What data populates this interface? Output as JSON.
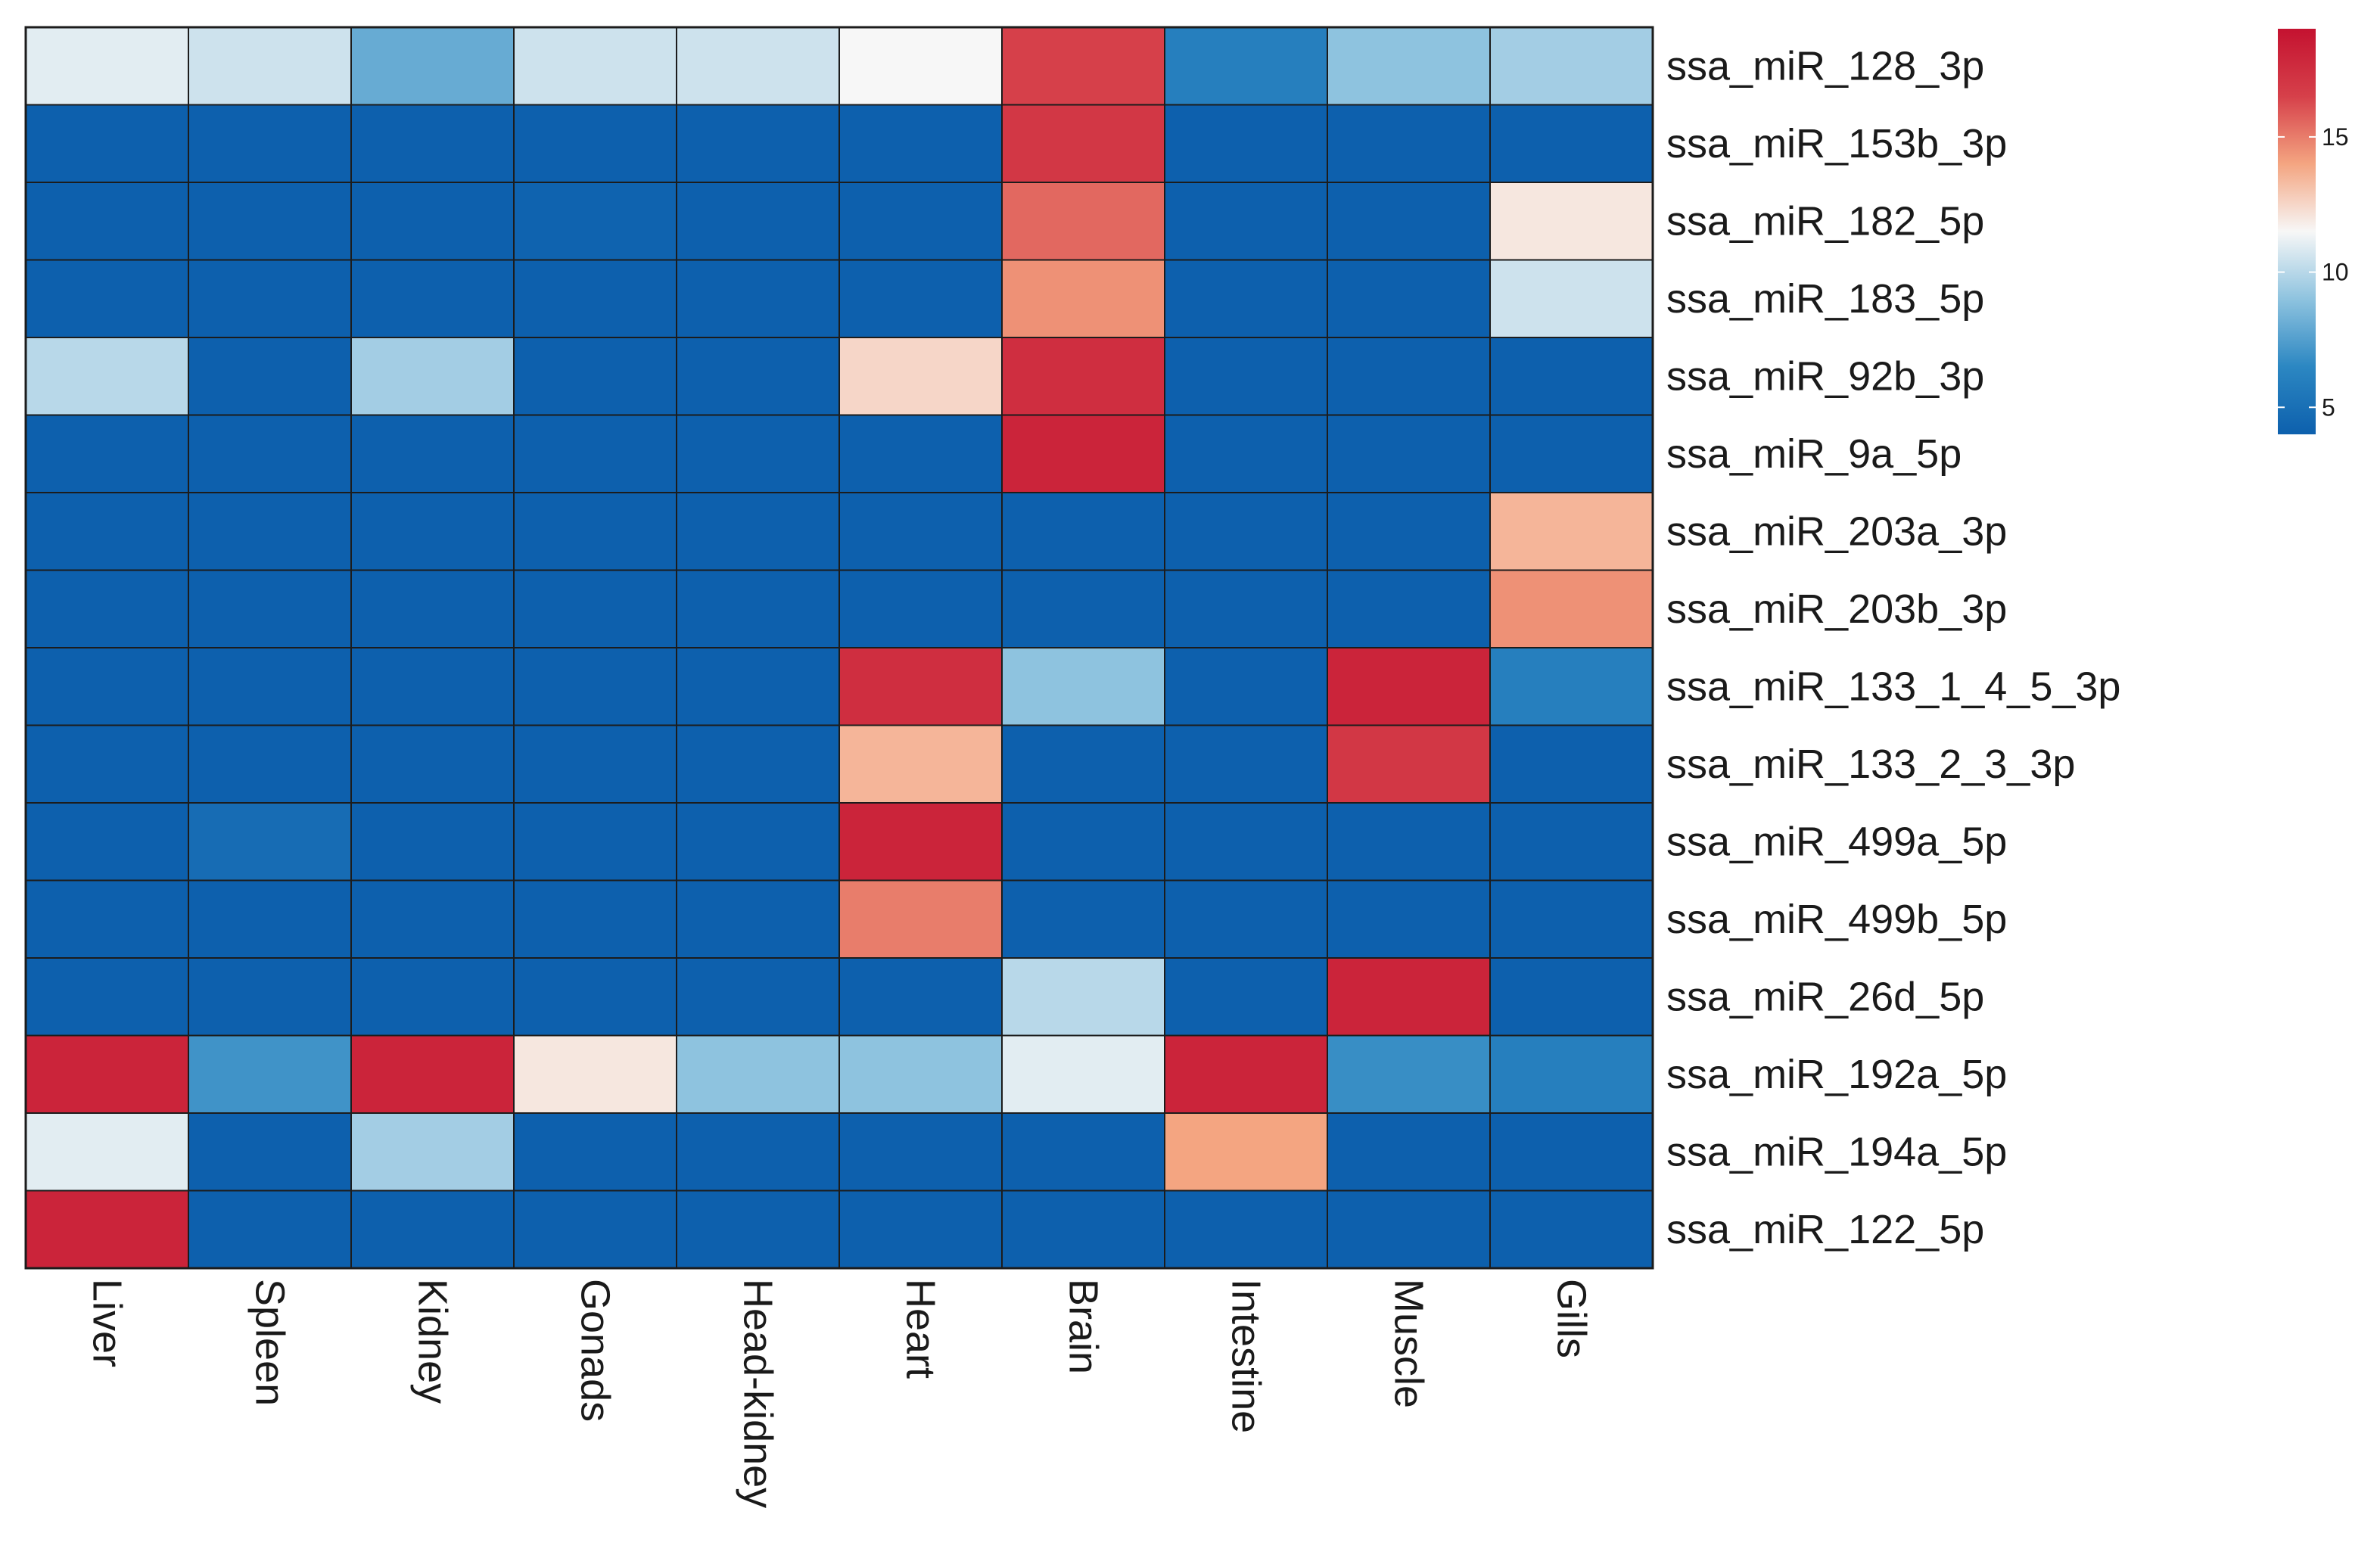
{
  "chart_data": {
    "type": "heatmap",
    "title": "",
    "xlabel": "",
    "ylabel": "",
    "columns": [
      "Liver",
      "Spleen",
      "Kidney",
      "Gonads",
      "Head-kidney",
      "Heart",
      "Brain",
      "Intestine",
      "Muscle",
      "Gills"
    ],
    "rows": [
      "ssa_miR_128_3p",
      "ssa_miR_153b_3p",
      "ssa_miR_182_5p",
      "ssa_miR_183_5p",
      "ssa_miR_92b_3p",
      "ssa_miR_9a_5p",
      "ssa_miR_203a_3p",
      "ssa_miR_203b_3p",
      "ssa_miR_133_1_4_5_3p",
      "ssa_miR_133_2_3_3p",
      "ssa_miR_499a_5p",
      "ssa_miR_499b_5p",
      "ssa_miR_26d_5p",
      "ssa_miR_192a_5p",
      "ssa_miR_194a_5p",
      "ssa_miR_122_5p"
    ],
    "values": [
      [
        11,
        10.5,
        8,
        10.5,
        10.5,
        11.5,
        16.5,
        6,
        9,
        9.5
      ],
      [
        4,
        4,
        4,
        4,
        4,
        4,
        17,
        4,
        4,
        4
      ],
      [
        4,
        4,
        4,
        4.2,
        4,
        4,
        15.5,
        4,
        4,
        12
      ],
      [
        4,
        4,
        4,
        4,
        4,
        4,
        14.5,
        4,
        4,
        10.5
      ],
      [
        10,
        4,
        9.5,
        4,
        4,
        12.5,
        17.5,
        4,
        4,
        4
      ],
      [
        4,
        4,
        4,
        4,
        4,
        4,
        18,
        4,
        4,
        4
      ],
      [
        4,
        4,
        4,
        4,
        4,
        4,
        4,
        4,
        4,
        13.5
      ],
      [
        4,
        4,
        4,
        4,
        4,
        4,
        4,
        4,
        4,
        14.5
      ],
      [
        4,
        4,
        4,
        4,
        4,
        17.5,
        9,
        4,
        18,
        6
      ],
      [
        4,
        4,
        4,
        4,
        4,
        13.5,
        4,
        4,
        17,
        4
      ],
      [
        4,
        4.8,
        4,
        4,
        4,
        18,
        4,
        4,
        4,
        4
      ],
      [
        4,
        4,
        4,
        4,
        4,
        15,
        4,
        4,
        4,
        4
      ],
      [
        4,
        4,
        4,
        4,
        4,
        4,
        10,
        4,
        18,
        4
      ],
      [
        18,
        7,
        18,
        12,
        9,
        9,
        11,
        18,
        6.8,
        6
      ],
      [
        11,
        4,
        9.5,
        4,
        4,
        4,
        4,
        14,
        4,
        4
      ],
      [
        18,
        4,
        4,
        4,
        4,
        4,
        4,
        4,
        4,
        4
      ]
    ],
    "value_range": [
      4,
      19
    ],
    "legend": {
      "position": "top-right",
      "ticks": [
        {
          "value": 15,
          "label": "15"
        },
        {
          "value": 10,
          "label": "10"
        },
        {
          "value": 5,
          "label": "5"
        }
      ]
    },
    "colorscale": [
      {
        "value": 4,
        "color": "#0d60ad"
      },
      {
        "value": 6.5,
        "color": "#2c87c2"
      },
      {
        "value": 9,
        "color": "#8ec3df"
      },
      {
        "value": 11.5,
        "color": "#f7f7f7"
      },
      {
        "value": 14,
        "color": "#f4a581"
      },
      {
        "value": 16.5,
        "color": "#d6404a"
      },
      {
        "value": 19,
        "color": "#c41230"
      }
    ]
  }
}
